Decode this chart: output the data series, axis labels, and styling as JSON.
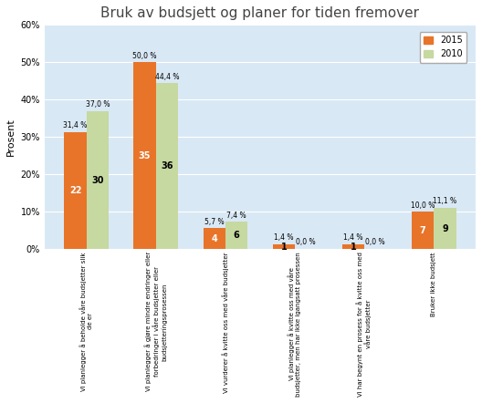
{
  "title": "Bruk av budsjett og planer for tiden fremover",
  "ylabel": "Prosent",
  "categories": [
    "Vi planlegger å beholde våre budsjetter slik\nde er",
    "Vi planlegger å gjøre mindre endringer eller\nforbedringer i våre budsjetter eller\nbudsjetteríngsprosessen",
    "Vi vurderer å kvitte oss med våre budsjetter",
    "Vi planlegger å kvitte oss med våre\nbudsjetter, men har ikke igangsatt prosessen",
    "Vi har begynt en prosess for å kvitte oss med\nvåre budsjetter",
    "Bruker ikke budsjett"
  ],
  "values_2015": [
    31.4,
    50.0,
    5.7,
    1.4,
    1.4,
    10.0
  ],
  "values_2010": [
    37.0,
    44.4,
    7.4,
    0.0,
    0.0,
    11.1
  ],
  "counts_2015": [
    22,
    35,
    4,
    1,
    1,
    7
  ],
  "counts_2010": [
    30,
    36,
    6,
    null,
    null,
    9
  ],
  "labels_2015": [
    "31,4 %",
    "50,0 %",
    "5,7 %",
    "1,4 %",
    "1,4 %",
    "10,0 %"
  ],
  "labels_2010": [
    "37,0 %",
    "44,4 %",
    "7,4 %",
    "0,0 %",
    "0,0 %",
    "11,1 %"
  ],
  "color_2015": "#E8742A",
  "color_2010": "#C6D9A0",
  "background_color": "#D9E8F5",
  "ylim": [
    0,
    60
  ],
  "yticks": [
    0,
    10,
    20,
    30,
    40,
    50,
    60
  ],
  "legend_2015": "2015",
  "legend_2010": "2010"
}
